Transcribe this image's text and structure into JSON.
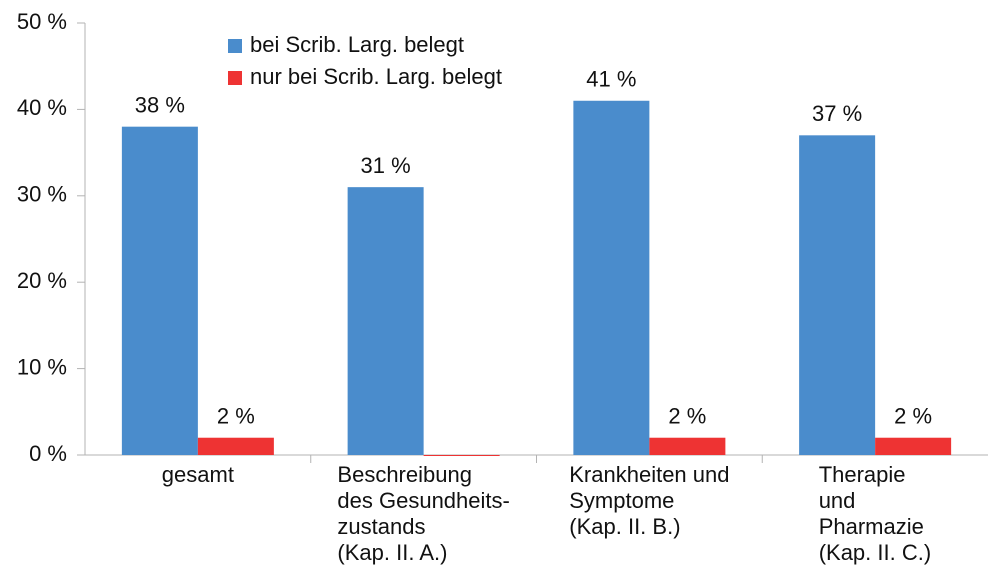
{
  "chart_data": {
    "type": "bar",
    "categories": [
      "gesamt",
      "Beschreibung\ndes Gesundheits-\nzustands\n(Kap. II. A.)",
      "Krankheiten und\nSymptome\n(Kap. II. B.)",
      "Therapie und\nPharmazie\n(Kap. II. C.)"
    ],
    "series": [
      {
        "name": "bei Scrib. Larg. belegt",
        "color": "#4a8ccc",
        "values": [
          38,
          31,
          41,
          37
        ],
        "value_labels": [
          "38 %",
          "31 %",
          "41 %",
          "37 %"
        ]
      },
      {
        "name": "nur bei Scrib. Larg. belegt",
        "color": "#ee3333",
        "values": [
          2,
          0,
          2,
          2
        ],
        "value_labels": [
          "2 %",
          null,
          "2 %",
          "2 %"
        ]
      }
    ],
    "ylim": [
      0,
      50
    ],
    "yticks": [
      {
        "value": 0,
        "label": "0 %"
      },
      {
        "value": 10,
        "label": "10 %"
      },
      {
        "value": 20,
        "label": "20 %"
      },
      {
        "value": 30,
        "label": "30 %"
      },
      {
        "value": 40,
        "label": "40 %"
      },
      {
        "value": 50,
        "label": "50 %"
      }
    ],
    "grid": false,
    "legend": "top"
  }
}
